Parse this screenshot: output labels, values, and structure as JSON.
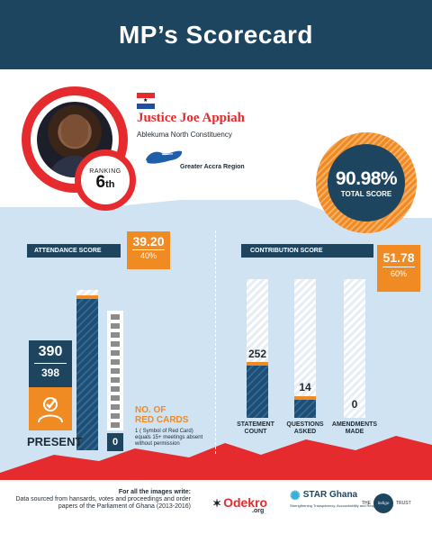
{
  "header": {
    "title": "MP’s Scorecard"
  },
  "mp": {
    "name": "Justice Joe Appiah",
    "constituency": "Ablekuma North Constituency",
    "region": "Greater Accra Region",
    "ranking_label": "RANKING",
    "ranking_value": "6",
    "ranking_suffix": "th"
  },
  "total": {
    "value": "90.98%",
    "label": "TOTAL SCORE"
  },
  "attendance": {
    "banner": "ATTENDANCE SCORE",
    "score": "39.20",
    "weight": "40%",
    "present": "390",
    "total_sittings": "398",
    "present_label": "PRESENT",
    "present_fraction": 0.98,
    "red_cards_title_1": "NO. OF",
    "red_cards_title_2": "RED CARDS",
    "red_cards_value": "0",
    "red_cards_note": "1 ( Symbol of Red Card) equals 15+ meetings absent without permission"
  },
  "contribution": {
    "banner": "CONTRIBUTION SCORE",
    "score": "51.78",
    "weight": "60%",
    "items": [
      {
        "label": "STATEMENT COUNT",
        "value": "252"
      },
      {
        "label": "QUESTIONS ASKED",
        "value": "14"
      },
      {
        "label": "AMENDMENTS MADE",
        "value": "0"
      }
    ]
  },
  "footer": {
    "line1": "For all the images write:",
    "line2": "Data sourced from hansards, votes and proceedings and order papers of the Parliament of Ghana (2013-2016)",
    "logo1": "Odekro",
    "logo1_sub": ".org",
    "logo2": "STAR Ghana",
    "logo2_sub": "Strengthening Transparency, Accountability and Responsiveness",
    "logo3_left": "THE",
    "logo3_mid": "indigo",
    "logo3_right": "TRUST"
  },
  "colors": {
    "navy": "#1e4560",
    "orange": "#f08a23",
    "red": "#e52b2e",
    "sky": "#cfe3f3"
  }
}
